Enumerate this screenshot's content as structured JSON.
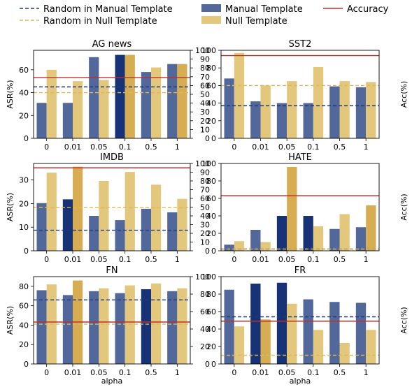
{
  "legend": {
    "placement": "top",
    "items": [
      {
        "label": "Random in Manual Template",
        "kind": "dashed-line",
        "color": "#1f3a78"
      },
      {
        "label": "Random in Null Template",
        "kind": "dashed-line",
        "color": "#e0b85c"
      },
      {
        "label": "Manual Template",
        "kind": "bar",
        "color": "#52679a"
      },
      {
        "label": "Null Template",
        "kind": "bar",
        "color": "#e3c77d"
      },
      {
        "label": "Accuracy",
        "kind": "line",
        "color": "#c0302b"
      }
    ]
  },
  "colors": {
    "manual": "#52679a",
    "manual_best": "#173275",
    "null": "#e3c77d",
    "null_best": "#d6ad52",
    "accuracy": "#c0302b",
    "random_manual": "#1f3a78",
    "random_null": "#e0b85c"
  },
  "chart_data": [
    {
      "type": "bar",
      "title": "AG news",
      "categories": [
        "0",
        "0.01",
        "0.05",
        "0.1",
        "0.5",
        "1"
      ],
      "ylabel": "ASR(%)",
      "y2label": "",
      "xlabel": "",
      "ylim": [
        0,
        77
      ],
      "yticks": [
        0,
        20,
        40,
        60
      ],
      "y2lim": [
        0,
        100
      ],
      "y2ticks": [
        0,
        10,
        20,
        30,
        40,
        50,
        60,
        70,
        80,
        90,
        100
      ],
      "series": [
        {
          "name": "Manual Template",
          "values": [
            31,
            31,
            71,
            73,
            58,
            65
          ]
        },
        {
          "name": "Null Template",
          "values": [
            60,
            50,
            51,
            73,
            62,
            65
          ]
        }
      ],
      "best": {
        "manual": [
          3
        ],
        "null": [
          3,
          5
        ]
      },
      "accuracy": 69,
      "random_manual": 45,
      "random_null": 40
    },
    {
      "type": "bar",
      "title": "SST2",
      "categories": [
        "0",
        "0.01",
        "0.05",
        "0.1",
        "0.5",
        "1"
      ],
      "ylabel": "",
      "y2label": "Acc(%)",
      "xlabel": "",
      "ylim": [
        0,
        100
      ],
      "yticks": [
        0,
        20,
        40,
        60,
        80,
        100
      ],
      "series": [
        {
          "name": "Manual Template",
          "values": [
            68,
            42,
            40,
            40,
            59,
            58
          ]
        },
        {
          "name": "Null Template",
          "values": [
            97,
            60,
            65,
            81,
            65,
            64
          ]
        }
      ],
      "best": {
        "manual": [],
        "null": []
      },
      "accuracy": 94,
      "random_manual": 37,
      "random_null": 60
    },
    {
      "type": "bar",
      "title": "IMDB",
      "categories": [
        "0",
        "0.01",
        "0.05",
        "0.1",
        "0.5",
        "1"
      ],
      "ylabel": "ASR(%)",
      "y2label": "",
      "xlabel": "",
      "ylim": [
        0,
        37
      ],
      "yticks": [
        0,
        10,
        20,
        30
      ],
      "y2lim": [
        0,
        100
      ],
      "y2ticks": [
        0,
        10,
        20,
        30,
        40,
        50,
        60,
        70,
        80,
        90,
        100
      ],
      "series": [
        {
          "name": "Manual Template",
          "values": [
            20.2,
            21.8,
            14.8,
            13,
            17.8,
            16.3
          ]
        },
        {
          "name": "Null Template",
          "values": [
            33.1,
            35.6,
            29.6,
            33.4,
            28,
            22
          ]
        }
      ],
      "best": {
        "manual": [
          1
        ],
        "null": [
          1
        ]
      },
      "accuracy": 95,
      "random_manual": 8.7,
      "random_null": 18.3
    },
    {
      "type": "bar",
      "title": "HATE",
      "categories": [
        "0",
        "0.01",
        "0.05",
        "0.1",
        "0.5",
        "1"
      ],
      "ylabel": "",
      "y2label": "Acc(%)",
      "xlabel": "",
      "ylim": [
        0,
        100
      ],
      "yticks": [
        0,
        20,
        40,
        60,
        80,
        100
      ],
      "series": [
        {
          "name": "Manual Template",
          "values": [
            7,
            24,
            40,
            40,
            25,
            27
          ]
        },
        {
          "name": "Null Template",
          "values": [
            11,
            10,
            96,
            28,
            42,
            52
          ]
        }
      ],
      "best": {
        "manual": [
          2,
          3
        ],
        "null": [
          2,
          5
        ]
      },
      "accuracy": 63,
      "random_manual": 2,
      "random_null": 2
    },
    {
      "type": "bar",
      "title": "FN",
      "categories": [
        "0",
        "0.01",
        "0.05",
        "0.1",
        "0.5",
        "1"
      ],
      "ylabel": "ASR(%)",
      "y2label": "",
      "xlabel": "alpha",
      "ylim": [
        0,
        90
      ],
      "yticks": [
        0,
        20,
        40,
        60,
        80
      ],
      "y2lim": [
        0,
        100
      ],
      "y2ticks": [
        0,
        20,
        40,
        60,
        80,
        100
      ],
      "series": [
        {
          "name": "Manual Template",
          "values": [
            76,
            71,
            75,
            73,
            77,
            75
          ]
        },
        {
          "name": "Null Template",
          "values": [
            82,
            86,
            78,
            81,
            83,
            78
          ]
        }
      ],
      "best": {
        "manual": [
          4
        ],
        "null": [
          1
        ]
      },
      "accuracy": 48,
      "random_manual": 66,
      "random_null": 41
    },
    {
      "type": "bar",
      "title": "FR",
      "categories": [
        "0",
        "0.01",
        "0.05",
        "0.1",
        "0.5",
        "1"
      ],
      "ylabel": "",
      "y2label": "Acc(%)",
      "xlabel": "alpha",
      "ylim": [
        0,
        100
      ],
      "yticks": [
        0,
        20,
        40,
        60,
        80,
        100
      ],
      "series": [
        {
          "name": "Manual Template",
          "values": [
            85,
            92,
            93,
            74,
            71,
            70
          ]
        },
        {
          "name": "Null Template",
          "values": [
            43,
            51,
            69,
            39,
            24,
            39
          ]
        }
      ],
      "best": {
        "manual": [
          1,
          2
        ],
        "null": [
          1
        ]
      },
      "accuracy": 49,
      "random_manual": 54,
      "random_null": 10
    }
  ]
}
